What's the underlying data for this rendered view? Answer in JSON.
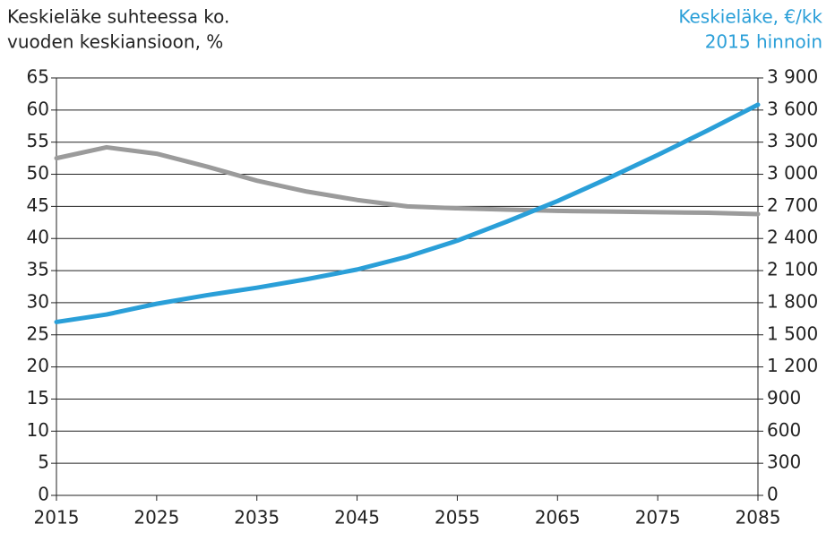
{
  "chart_data": {
    "type": "line",
    "y_label": [
      "Keskieläke suhteessa ko.",
      "vuoden keskiansioon, %"
    ],
    "y2_label": [
      "Keskieläke, €/kk",
      "2015 hinnoin"
    ],
    "y2_label_color": "#2a9fd8",
    "x": [
      2015,
      2020,
      2025,
      2030,
      2035,
      2040,
      2045,
      2050,
      2055,
      2060,
      2065,
      2070,
      2075,
      2080,
      2085
    ],
    "xlim": [
      2015,
      2085
    ],
    "xticks": [
      2015,
      2025,
      2035,
      2045,
      2055,
      2065,
      2075,
      2085
    ],
    "ylim": [
      0,
      65
    ],
    "yticks": [
      0,
      5,
      10,
      15,
      20,
      25,
      30,
      35,
      40,
      45,
      50,
      55,
      60,
      65
    ],
    "y2lim": [
      0,
      3900
    ],
    "y2ticks": [
      0,
      300,
      600,
      900,
      {
        "value": 1200,
        "label": "1 200"
      },
      {
        "value": 1500,
        "label": "1 500"
      },
      {
        "value": 1800,
        "label": "1 800"
      },
      {
        "value": 2100,
        "label": "2 100"
      },
      {
        "value": 2400,
        "label": "2 400"
      },
      {
        "value": 2700,
        "label": "2 700"
      },
      {
        "value": 3000,
        "label": "3 000"
      },
      {
        "value": 3300,
        "label": "3 300"
      },
      {
        "value": 3600,
        "label": "3 600"
      },
      {
        "value": 3900,
        "label": "3 900"
      }
    ],
    "grid": true,
    "series": [
      {
        "color": "#9b9b9b",
        "values": [
          52.5,
          54.2,
          53.2,
          51.2,
          49,
          47.3,
          46,
          45,
          44.7,
          44.5,
          44.3,
          44.2,
          44.1,
          44,
          43.8
        ]
      },
      {
        "color": "#2a9fd8",
        "axis": "y2",
        "values": [
          1620,
          1690,
          1790,
          1870,
          1940,
          2020,
          2110,
          2230,
          2380,
          2560,
          2750,
          2960,
          3180,
          3410,
          3650
        ]
      }
    ]
  }
}
